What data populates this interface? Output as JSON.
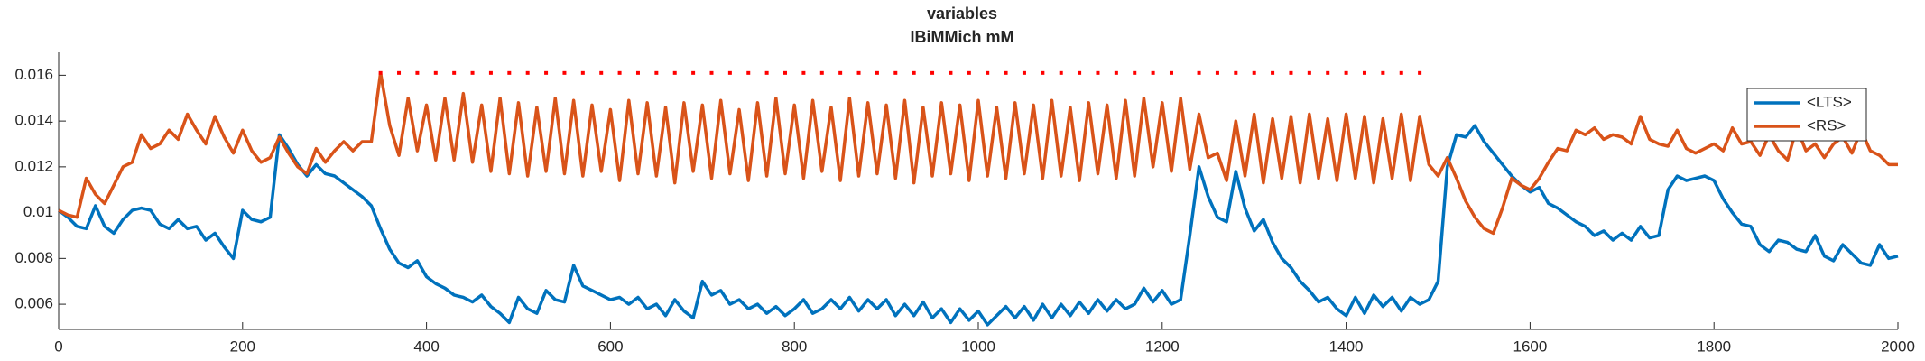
{
  "chart_data": {
    "type": "line",
    "title": "variables",
    "subtitle": "IBiMMich mM",
    "xlim": [
      0,
      2000
    ],
    "xticks": [
      0,
      200,
      400,
      600,
      800,
      1000,
      1200,
      1400,
      1600,
      1800,
      2000
    ],
    "ylim": [
      0.0049,
      0.017
    ],
    "yticks": [
      0.006,
      0.008,
      0.01,
      0.012,
      0.014,
      0.016
    ],
    "legend": "upper right",
    "x": [
      0,
      10,
      20,
      30,
      40,
      50,
      60,
      70,
      80,
      90,
      100,
      110,
      120,
      130,
      140,
      150,
      160,
      170,
      180,
      190,
      200,
      210,
      220,
      230,
      240,
      250,
      260,
      270,
      280,
      290,
      300,
      310,
      320,
      330,
      340,
      350,
      360,
      370,
      380,
      390,
      400,
      410,
      420,
      430,
      440,
      450,
      460,
      470,
      480,
      490,
      500,
      510,
      520,
      530,
      540,
      550,
      560,
      570,
      580,
      590,
      600,
      610,
      620,
      630,
      640,
      650,
      660,
      670,
      680,
      690,
      700,
      710,
      720,
      730,
      740,
      750,
      760,
      770,
      780,
      790,
      800,
      810,
      820,
      830,
      840,
      850,
      860,
      870,
      880,
      890,
      900,
      910,
      920,
      930,
      940,
      950,
      960,
      970,
      980,
      990,
      1000,
      1010,
      1020,
      1030,
      1040,
      1050,
      1060,
      1070,
      1080,
      1090,
      1100,
      1110,
      1120,
      1130,
      1140,
      1150,
      1160,
      1170,
      1180,
      1190,
      1200,
      1210,
      1220,
      1230,
      1240,
      1250,
      1260,
      1270,
      1280,
      1290,
      1300,
      1310,
      1320,
      1330,
      1340,
      1350,
      1360,
      1370,
      1380,
      1390,
      1400,
      1410,
      1420,
      1430,
      1440,
      1450,
      1460,
      1470,
      1480,
      1490,
      1500,
      1510,
      1520,
      1530,
      1540,
      1550,
      1560,
      1570,
      1580,
      1590,
      1600,
      1610,
      1620,
      1630,
      1640,
      1650,
      1660,
      1670,
      1680,
      1690,
      1700,
      1710,
      1720,
      1730,
      1740,
      1750,
      1760,
      1770,
      1780,
      1790,
      1800,
      1810,
      1820,
      1830,
      1840,
      1850,
      1860,
      1870,
      1880,
      1890,
      1900,
      1910,
      1920,
      1930,
      1940,
      1950,
      1960,
      1970,
      1980,
      1990,
      2000
    ],
    "series": [
      {
        "name": "<LTS>",
        "color": "#0072bd",
        "values": [
          0.0101,
          0.0098,
          0.0094,
          0.0093,
          0.0103,
          0.0094,
          0.0091,
          0.0097,
          0.0101,
          0.0102,
          0.0101,
          0.0095,
          0.0093,
          0.0097,
          0.0093,
          0.0094,
          0.0088,
          0.0091,
          0.0085,
          0.008,
          0.0101,
          0.0097,
          0.0096,
          0.0098,
          0.0134,
          0.0128,
          0.0121,
          0.0116,
          0.0121,
          0.0117,
          0.0116,
          0.0113,
          0.011,
          0.0107,
          0.0103,
          0.0093,
          0.0084,
          0.0078,
          0.0076,
          0.0079,
          0.0072,
          0.0069,
          0.0067,
          0.0064,
          0.0063,
          0.0061,
          0.0064,
          0.0059,
          0.0056,
          0.0052,
          0.0063,
          0.0058,
          0.0056,
          0.0066,
          0.0062,
          0.0061,
          0.0077,
          0.0068,
          0.0066,
          0.0064,
          0.0062,
          0.0063,
          0.006,
          0.0063,
          0.0058,
          0.006,
          0.0055,
          0.0062,
          0.0057,
          0.0054,
          0.007,
          0.0064,
          0.0066,
          0.006,
          0.0062,
          0.0058,
          0.006,
          0.0056,
          0.0059,
          0.0055,
          0.0058,
          0.0062,
          0.0056,
          0.0058,
          0.0062,
          0.0058,
          0.0063,
          0.0057,
          0.0062,
          0.0058,
          0.0062,
          0.0055,
          0.006,
          0.0055,
          0.0061,
          0.0054,
          0.0058,
          0.0052,
          0.0058,
          0.0053,
          0.0057,
          0.0051,
          0.0055,
          0.0059,
          0.0054,
          0.0059,
          0.0053,
          0.006,
          0.0054,
          0.006,
          0.0055,
          0.0061,
          0.0056,
          0.0062,
          0.0057,
          0.0062,
          0.0058,
          0.006,
          0.0067,
          0.0061,
          0.0066,
          0.006,
          0.0062,
          0.009,
          0.012,
          0.0107,
          0.0098,
          0.0096,
          0.0118,
          0.0102,
          0.0092,
          0.0097,
          0.0087,
          0.008,
          0.0076,
          0.007,
          0.0066,
          0.0061,
          0.0063,
          0.0058,
          0.0055,
          0.0063,
          0.0056,
          0.0064,
          0.0059,
          0.0063,
          0.0057,
          0.0063,
          0.006,
          0.0062,
          0.007,
          0.012,
          0.0134,
          0.0133,
          0.0138,
          0.0131,
          0.0126,
          0.0121,
          0.0116,
          0.0112,
          0.0109,
          0.0111,
          0.0104,
          0.0102,
          0.0099,
          0.0096,
          0.0094,
          0.009,
          0.0092,
          0.0088,
          0.0091,
          0.0088,
          0.0094,
          0.0089,
          0.009,
          0.011,
          0.0116,
          0.0114,
          0.0115,
          0.0116,
          0.0114,
          0.0106,
          0.01,
          0.0095,
          0.0094,
          0.0086,
          0.0083,
          0.0088,
          0.0087,
          0.0084,
          0.0083,
          0.009,
          0.0081,
          0.0079,
          0.0086,
          0.0082,
          0.0078,
          0.0077,
          0.0086,
          0.008,
          0.0081
        ]
      },
      {
        "name": "<RS>",
        "color": "#d95319",
        "values": [
          0.0101,
          0.0099,
          0.0098,
          0.0115,
          0.0108,
          0.0104,
          0.0112,
          0.012,
          0.0122,
          0.0134,
          0.0128,
          0.013,
          0.0136,
          0.0132,
          0.0143,
          0.0136,
          0.013,
          0.0142,
          0.0133,
          0.0126,
          0.0136,
          0.0127,
          0.0122,
          0.0124,
          0.0133,
          0.0126,
          0.012,
          0.0117,
          0.0128,
          0.0122,
          0.0127,
          0.0131,
          0.0127,
          0.0131,
          0.0131,
          0.0161,
          0.0138,
          0.0125,
          0.015,
          0.0127,
          0.0147,
          0.0123,
          0.015,
          0.0123,
          0.0152,
          0.0122,
          0.0147,
          0.0118,
          0.015,
          0.0117,
          0.0148,
          0.0116,
          0.0146,
          0.0118,
          0.015,
          0.0117,
          0.0149,
          0.0116,
          0.0147,
          0.0118,
          0.0145,
          0.0114,
          0.0149,
          0.0117,
          0.0148,
          0.0116,
          0.0146,
          0.0113,
          0.0148,
          0.0118,
          0.0147,
          0.0115,
          0.0149,
          0.0117,
          0.0145,
          0.0114,
          0.0148,
          0.0116,
          0.015,
          0.0117,
          0.0147,
          0.0115,
          0.0149,
          0.0118,
          0.0146,
          0.0114,
          0.015,
          0.0116,
          0.0148,
          0.0117,
          0.0147,
          0.0115,
          0.0149,
          0.0113,
          0.0146,
          0.0116,
          0.0148,
          0.0117,
          0.0147,
          0.0114,
          0.0149,
          0.0116,
          0.0146,
          0.0115,
          0.0148,
          0.0117,
          0.0147,
          0.0115,
          0.0149,
          0.0116,
          0.0146,
          0.0114,
          0.0148,
          0.0117,
          0.0147,
          0.0115,
          0.0149,
          0.0116,
          0.015,
          0.012,
          0.0148,
          0.0118,
          0.015,
          0.0119,
          0.0143,
          0.0124,
          0.0126,
          0.0114,
          0.014,
          0.0116,
          0.0143,
          0.0113,
          0.0141,
          0.0115,
          0.0142,
          0.0113,
          0.0143,
          0.0115,
          0.0141,
          0.0114,
          0.0143,
          0.0115,
          0.0142,
          0.0113,
          0.0141,
          0.0115,
          0.0143,
          0.0114,
          0.0142,
          0.0121,
          0.0116,
          0.0124,
          0.0115,
          0.0105,
          0.0098,
          0.0093,
          0.0091,
          0.0102,
          0.0115,
          0.0112,
          0.011,
          0.0115,
          0.0122,
          0.0128,
          0.0127,
          0.0136,
          0.0134,
          0.0137,
          0.0132,
          0.0134,
          0.0133,
          0.013,
          0.0142,
          0.0132,
          0.013,
          0.0129,
          0.0136,
          0.0128,
          0.0126,
          0.0128,
          0.013,
          0.0127,
          0.0137,
          0.013,
          0.0131,
          0.0125,
          0.0134,
          0.0127,
          0.0123,
          0.0137,
          0.0127,
          0.013,
          0.0124,
          0.013,
          0.0133,
          0.0126,
          0.0136,
          0.0127,
          0.0125,
          0.0121,
          0.0121
        ]
      }
    ],
    "markers": {
      "color": "#ff0000",
      "y": 0.0161,
      "x": [
        350,
        370,
        390,
        410,
        430,
        450,
        470,
        490,
        510,
        530,
        550,
        570,
        590,
        610,
        630,
        650,
        670,
        690,
        710,
        730,
        750,
        770,
        790,
        810,
        830,
        850,
        870,
        890,
        910,
        930,
        950,
        970,
        990,
        1010,
        1030,
        1050,
        1070,
        1090,
        1110,
        1130,
        1150,
        1170,
        1190,
        1210,
        1240,
        1260,
        1280,
        1300,
        1320,
        1340,
        1360,
        1380,
        1400,
        1420,
        1440,
        1460,
        1480
      ]
    }
  }
}
